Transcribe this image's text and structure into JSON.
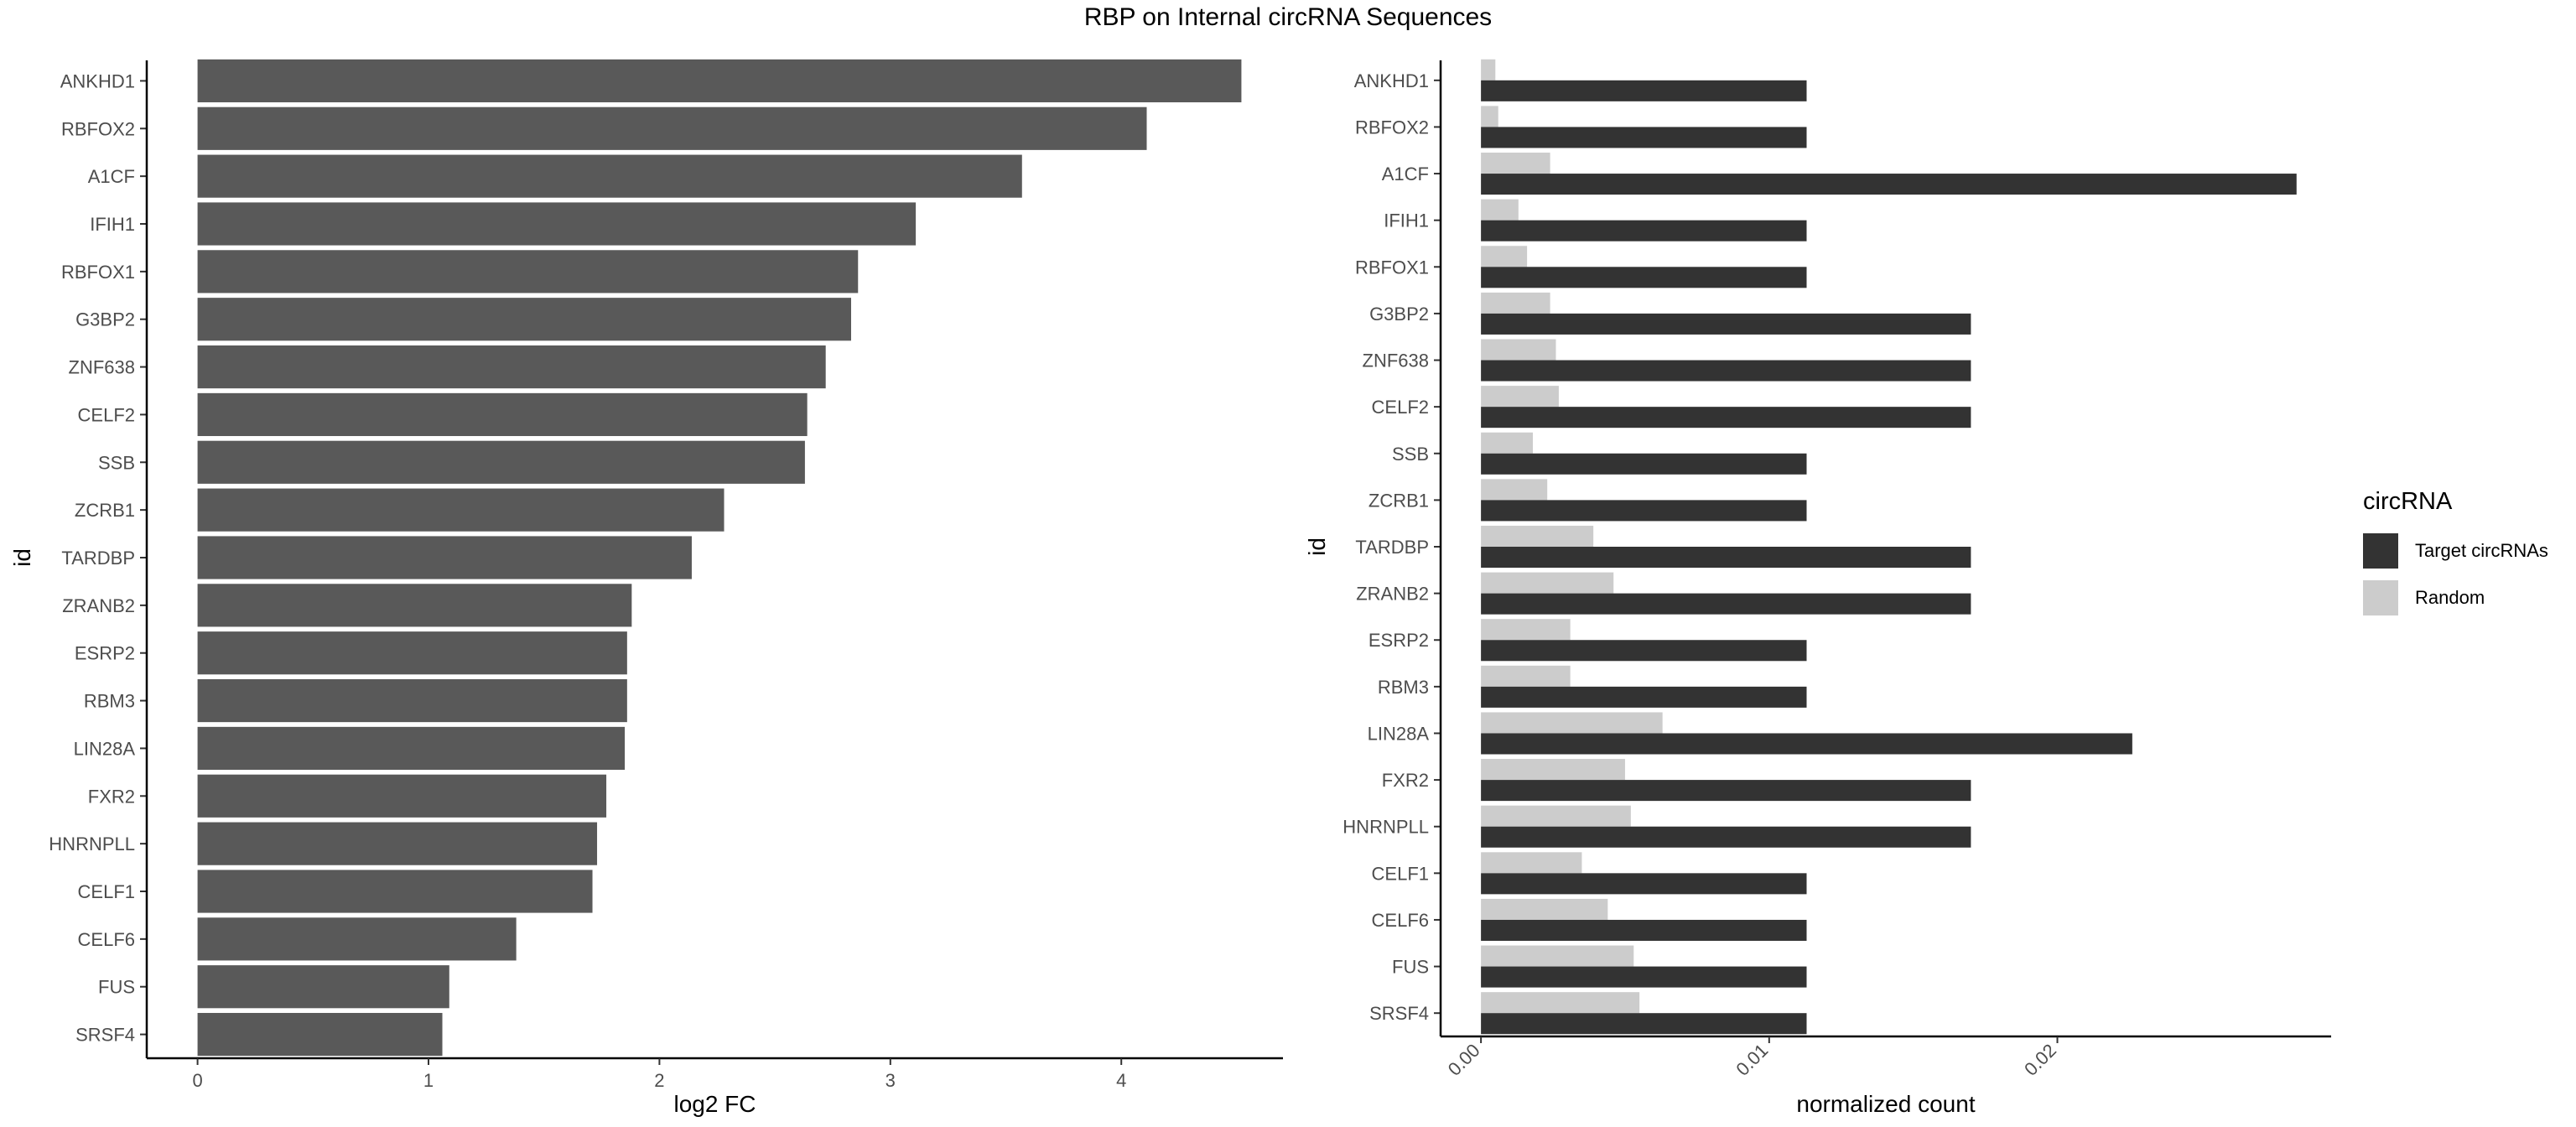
{
  "title": "RBP on Internal circRNA Sequences",
  "chart_data": [
    {
      "type": "bar",
      "orientation": "horizontal",
      "xlabel": "log2 FC",
      "ylabel": "id",
      "xlim": [
        -0.22,
        4.7
      ],
      "xticks": [
        0,
        1,
        2,
        3,
        4
      ],
      "grid": false,
      "categories": [
        "ANKHD1",
        "RBFOX2",
        "A1CF",
        "IFIH1",
        "RBFOX1",
        "G3BP2",
        "ZNF638",
        "CELF2",
        "SSB",
        "ZCRB1",
        "TARDBP",
        "ZRANB2",
        "ESRP2",
        "RBM3",
        "LIN28A",
        "FXR2",
        "HNRNPLL",
        "CELF1",
        "CELF6",
        "FUS",
        "SRSF4"
      ],
      "values": [
        4.52,
        4.11,
        3.57,
        3.11,
        2.86,
        2.83,
        2.72,
        2.64,
        2.63,
        2.28,
        2.14,
        1.88,
        1.86,
        1.86,
        1.85,
        1.77,
        1.73,
        1.71,
        1.38,
        1.09,
        1.06
      ],
      "color": "#595959"
    },
    {
      "type": "bar",
      "orientation": "horizontal",
      "xlabel": "normalized count",
      "ylabel": "id",
      "xlim": [
        -0.0014,
        0.0295
      ],
      "xticks": [
        "0.00",
        "0.01",
        "0.02"
      ],
      "grid": false,
      "legend_title": "circRNA",
      "legend_position": "right",
      "categories": [
        "ANKHD1",
        "RBFOX2",
        "A1CF",
        "IFIH1",
        "RBFOX1",
        "G3BP2",
        "ZNF638",
        "CELF2",
        "SSB",
        "ZCRB1",
        "TARDBP",
        "ZRANB2",
        "ESRP2",
        "RBM3",
        "LIN28A",
        "FXR2",
        "HNRNPLL",
        "CELF1",
        "CELF6",
        "FUS",
        "SRSF4"
      ],
      "series": [
        {
          "name": "Target circRNAs",
          "color": "#333333",
          "values": [
            0.0113,
            0.0113,
            0.0283,
            0.0113,
            0.0113,
            0.017,
            0.017,
            0.017,
            0.0113,
            0.0113,
            0.017,
            0.017,
            0.0113,
            0.0113,
            0.0226,
            0.017,
            0.017,
            0.0113,
            0.0113,
            0.0113,
            0.0113
          ]
        },
        {
          "name": "Random",
          "color": "#cccccc",
          "values": [
            0.0005,
            0.0006,
            0.0024,
            0.0013,
            0.0016,
            0.0024,
            0.0026,
            0.0027,
            0.0018,
            0.0023,
            0.0039,
            0.0046,
            0.0031,
            0.0031,
            0.0063,
            0.005,
            0.0052,
            0.0035,
            0.0044,
            0.0053,
            0.0055
          ]
        }
      ]
    }
  ]
}
